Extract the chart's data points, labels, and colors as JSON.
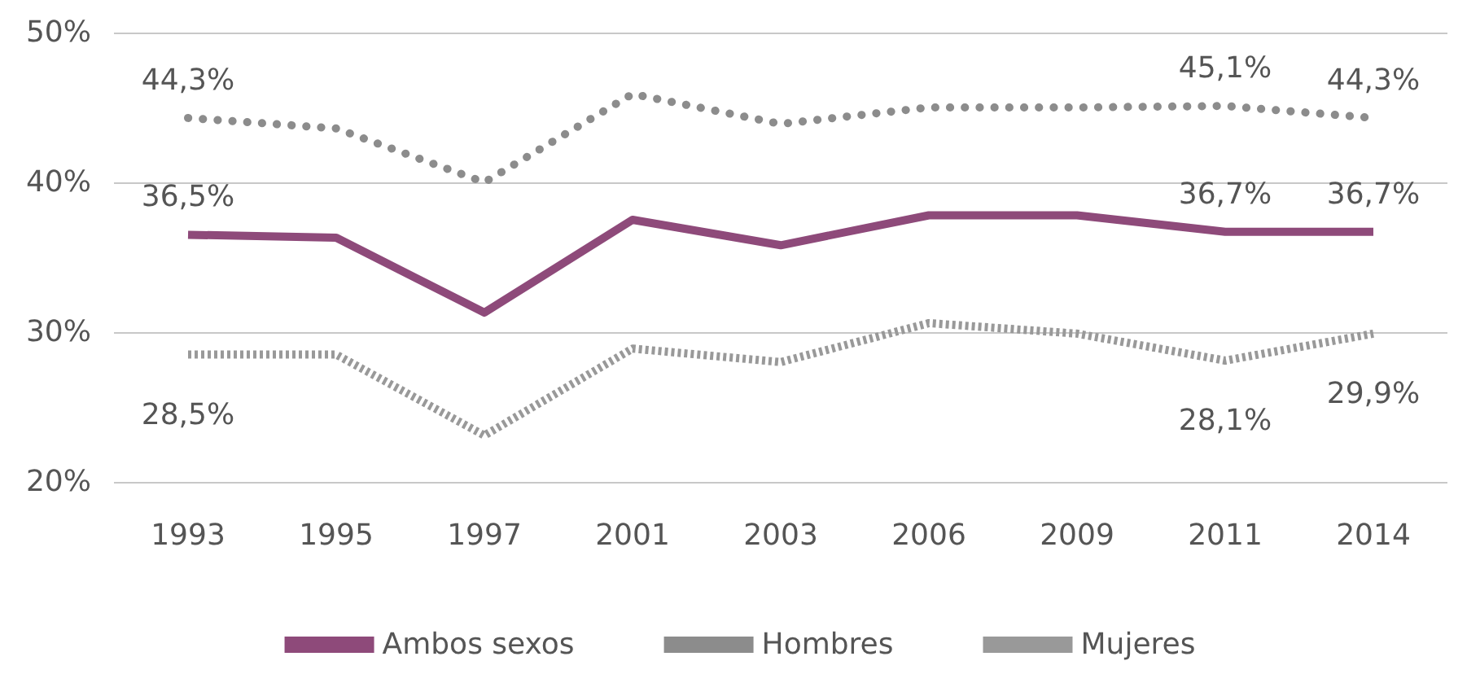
{
  "chart_data": {
    "type": "line",
    "categories": [
      "1993",
      "1995",
      "1997",
      "2001",
      "2003",
      "2006",
      "2009",
      "2011",
      "2014"
    ],
    "series": [
      {
        "name": "Ambos sexos",
        "color": "#8e4a7a",
        "line_style": "solid",
        "values": [
          36.5,
          36.3,
          31.3,
          37.5,
          35.8,
          37.8,
          37.8,
          36.7,
          36.7
        ],
        "value_labels": [
          "36,5%",
          null,
          null,
          null,
          null,
          null,
          null,
          "36,7%",
          "36,7%"
        ]
      },
      {
        "name": "Hombres",
        "color": "#8c8c8c",
        "line_style": "dotted",
        "values": [
          44.3,
          43.6,
          40.0,
          45.9,
          43.9,
          45.0,
          45.0,
          45.1,
          44.3
        ],
        "value_labels": [
          "44,3%",
          null,
          null,
          null,
          null,
          null,
          null,
          "45,1%",
          "44,3%"
        ]
      },
      {
        "name": "Mujeres",
        "color": "#999999",
        "line_style": "dashed",
        "values": [
          28.5,
          28.5,
          23.1,
          28.9,
          28.0,
          30.6,
          29.9,
          28.1,
          29.9
        ],
        "value_labels": [
          "28,5%",
          null,
          null,
          null,
          null,
          null,
          null,
          "28,1%",
          "29,9%"
        ]
      }
    ],
    "ylim": [
      20,
      50
    ],
    "yticks": [
      {
        "value": 20,
        "label": "20%"
      },
      {
        "value": 30,
        "label": "30%"
      },
      {
        "value": 40,
        "label": "40%"
      },
      {
        "value": 50,
        "label": "50%"
      }
    ],
    "grid": "y",
    "legend": "bottom",
    "marker": "none"
  }
}
